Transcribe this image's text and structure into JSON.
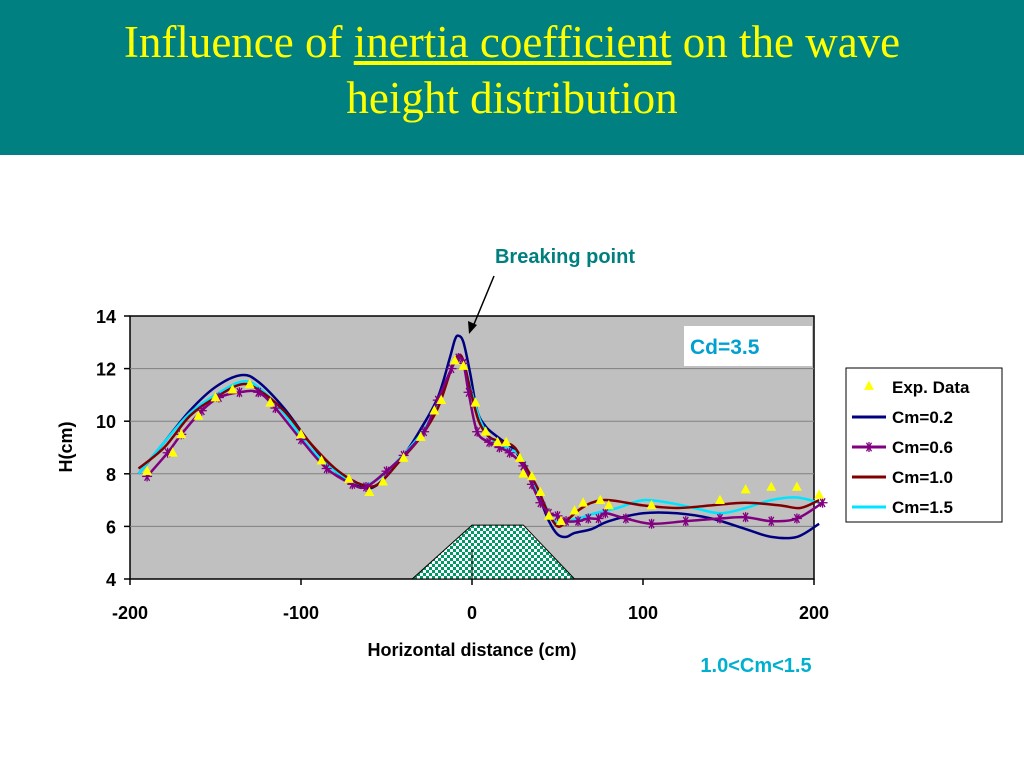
{
  "title": {
    "part1": "Influence of ",
    "underlined": "inertia coefficient",
    "part2": " on the wave",
    "line2": "height distribution"
  },
  "annotations": {
    "breaking_point": "Breaking point",
    "cd_label": "Cd=3.5",
    "cm_range": "1.0<Cm<1.5"
  },
  "colors": {
    "title_bg": "#008080",
    "title_text": "#ffff00",
    "plot_bg": "#c0c0c0",
    "annotation_teal": "#007f7f",
    "cm_range_cyan": "#00b0d0"
  },
  "chart_data": {
    "type": "line",
    "xlabel": "Horizontal distance (cm)",
    "ylabel": "H(cm)",
    "xlim": [
      -200,
      200
    ],
    "ylim": [
      4,
      14
    ],
    "xticks": [
      -200,
      -100,
      0,
      100,
      200
    ],
    "yticks": [
      4,
      6,
      8,
      10,
      12,
      14
    ],
    "grid": "horizontal",
    "legend": "right",
    "bathymetry_feature": {
      "description": "submerged breakwater (hatched trapezoid)",
      "points": [
        [
          -35,
          4
        ],
        [
          0,
          6.05
        ],
        [
          30,
          6.05
        ],
        [
          60,
          4
        ]
      ]
    },
    "series": [
      {
        "name": "Exp. Data",
        "style": "marker-triangle",
        "color": "#ffff00",
        "points": [
          [
            -190,
            8.1
          ],
          [
            -175,
            8.8
          ],
          [
            -170,
            9.5
          ],
          [
            -160,
            10.2
          ],
          [
            -150,
            10.9
          ],
          [
            -140,
            11.2
          ],
          [
            -130,
            11.4
          ],
          [
            -118,
            10.7
          ],
          [
            -100,
            9.5
          ],
          [
            -88,
            8.5
          ],
          [
            -72,
            7.8
          ],
          [
            -60,
            7.3
          ],
          [
            -52,
            7.7
          ],
          [
            -40,
            8.6
          ],
          [
            -30,
            9.4
          ],
          [
            -22,
            10.4
          ],
          [
            -18,
            10.8
          ],
          [
            -10,
            12.3
          ],
          [
            -5,
            12.1
          ],
          [
            2,
            10.7
          ],
          [
            8,
            9.6
          ],
          [
            15,
            9.2
          ],
          [
            20,
            9.2
          ],
          [
            28,
            8.6
          ],
          [
            30,
            8.0
          ],
          [
            35,
            7.9
          ],
          [
            40,
            7.3
          ],
          [
            45,
            6.4
          ],
          [
            52,
            6.2
          ],
          [
            60,
            6.6
          ],
          [
            65,
            6.9
          ],
          [
            75,
            7.0
          ],
          [
            80,
            6.8
          ],
          [
            105,
            6.8
          ],
          [
            145,
            7.0
          ],
          [
            160,
            7.4
          ],
          [
            175,
            7.5
          ],
          [
            190,
            7.5
          ],
          [
            203,
            7.2
          ]
        ]
      },
      {
        "name": "Cm=0.2",
        "style": "line",
        "color": "#000080",
        "points": [
          [
            -195,
            8.0
          ],
          [
            -180,
            9.2
          ],
          [
            -165,
            10.4
          ],
          [
            -150,
            11.3
          ],
          [
            -135,
            11.75
          ],
          [
            -125,
            11.5
          ],
          [
            -110,
            10.5
          ],
          [
            -95,
            9.2
          ],
          [
            -80,
            8.1
          ],
          [
            -65,
            7.5
          ],
          [
            -55,
            7.6
          ],
          [
            -40,
            8.7
          ],
          [
            -30,
            9.7
          ],
          [
            -20,
            10.9
          ],
          [
            -13,
            12.4
          ],
          [
            -10,
            13.1
          ],
          [
            -8,
            13.25
          ],
          [
            -5,
            13.0
          ],
          [
            -1,
            11.8
          ],
          [
            3,
            10.4
          ],
          [
            8,
            9.8
          ],
          [
            15,
            9.4
          ],
          [
            25,
            8.9
          ],
          [
            30,
            8.3
          ],
          [
            35,
            7.7
          ],
          [
            40,
            7.0
          ],
          [
            45,
            6.2
          ],
          [
            50,
            5.7
          ],
          [
            55,
            5.6
          ],
          [
            60,
            5.75
          ],
          [
            70,
            5.9
          ],
          [
            80,
            6.2
          ],
          [
            100,
            6.5
          ],
          [
            120,
            6.5
          ],
          [
            140,
            6.3
          ],
          [
            160,
            5.9
          ],
          [
            175,
            5.6
          ],
          [
            190,
            5.6
          ],
          [
            203,
            6.1
          ]
        ]
      },
      {
        "name": "Cm=0.6",
        "style": "line-star",
        "color": "#800080",
        "points": [
          [
            -190,
            7.9
          ],
          [
            -178,
            8.8
          ],
          [
            -170,
            9.5
          ],
          [
            -158,
            10.4
          ],
          [
            -148,
            10.9
          ],
          [
            -136,
            11.1
          ],
          [
            -125,
            11.1
          ],
          [
            -115,
            10.5
          ],
          [
            -100,
            9.3
          ],
          [
            -85,
            8.2
          ],
          [
            -70,
            7.6
          ],
          [
            -62,
            7.5
          ],
          [
            -50,
            8.1
          ],
          [
            -40,
            8.7
          ],
          [
            -28,
            9.6
          ],
          [
            -20,
            10.8
          ],
          [
            -12,
            12.0
          ],
          [
            -8,
            12.4
          ],
          [
            -5,
            12.2
          ],
          [
            -2,
            11.1
          ],
          [
            3,
            9.6
          ],
          [
            10,
            9.2
          ],
          [
            16,
            9.0
          ],
          [
            22,
            8.8
          ],
          [
            30,
            8.3
          ],
          [
            35,
            7.6
          ],
          [
            40,
            6.9
          ],
          [
            45,
            6.5
          ],
          [
            50,
            6.4
          ],
          [
            55,
            6.2
          ],
          [
            62,
            6.2
          ],
          [
            68,
            6.3
          ],
          [
            74,
            6.3
          ],
          [
            78,
            6.5
          ],
          [
            90,
            6.3
          ],
          [
            105,
            6.1
          ],
          [
            125,
            6.2
          ],
          [
            145,
            6.3
          ],
          [
            160,
            6.35
          ],
          [
            175,
            6.2
          ],
          [
            190,
            6.3
          ],
          [
            205,
            6.9
          ]
        ]
      },
      {
        "name": "Cm=1.0",
        "style": "line",
        "color": "#800000",
        "points": [
          [
            -195,
            8.2
          ],
          [
            -180,
            9.0
          ],
          [
            -165,
            10.2
          ],
          [
            -150,
            10.9
          ],
          [
            -135,
            11.4
          ],
          [
            -125,
            11.2
          ],
          [
            -110,
            10.4
          ],
          [
            -95,
            9.2
          ],
          [
            -80,
            8.2
          ],
          [
            -65,
            7.6
          ],
          [
            -55,
            7.6
          ],
          [
            -42,
            8.5
          ],
          [
            -30,
            9.4
          ],
          [
            -20,
            10.5
          ],
          [
            -12,
            12.0
          ],
          [
            -8,
            12.5
          ],
          [
            -5,
            12.3
          ],
          [
            -1,
            11.2
          ],
          [
            4,
            10.0
          ],
          [
            10,
            9.4
          ],
          [
            18,
            9.2
          ],
          [
            25,
            9.0
          ],
          [
            32,
            8.2
          ],
          [
            38,
            7.5
          ],
          [
            44,
            6.6
          ],
          [
            50,
            6.0
          ],
          [
            55,
            6.2
          ],
          [
            62,
            6.6
          ],
          [
            70,
            6.9
          ],
          [
            80,
            7.0
          ],
          [
            100,
            6.8
          ],
          [
            120,
            6.7
          ],
          [
            140,
            6.8
          ],
          [
            160,
            6.9
          ],
          [
            180,
            6.8
          ],
          [
            192,
            6.7
          ],
          [
            203,
            7.0
          ]
        ]
      },
      {
        "name": "Cm=1.5",
        "style": "line",
        "color": "#00e5ff",
        "points": [
          [
            -195,
            8.0
          ],
          [
            -180,
            9.2
          ],
          [
            -165,
            10.3
          ],
          [
            -150,
            11.0
          ],
          [
            -135,
            11.5
          ],
          [
            -125,
            11.3
          ],
          [
            -110,
            10.3
          ],
          [
            -95,
            9.0
          ],
          [
            -80,
            8.1
          ],
          [
            -65,
            7.6
          ],
          [
            -55,
            7.8
          ],
          [
            -42,
            8.6
          ],
          [
            -30,
            9.5
          ],
          [
            -20,
            10.6
          ],
          [
            -12,
            12.0
          ],
          [
            -8,
            12.4
          ],
          [
            -5,
            12.2
          ],
          [
            -1,
            11.3
          ],
          [
            5,
            10.0
          ],
          [
            12,
            9.3
          ],
          [
            20,
            9.0
          ],
          [
            28,
            8.7
          ],
          [
            35,
            7.8
          ],
          [
            42,
            6.9
          ],
          [
            48,
            6.2
          ],
          [
            55,
            6.2
          ],
          [
            62,
            6.3
          ],
          [
            72,
            6.5
          ],
          [
            85,
            6.7
          ],
          [
            100,
            7.0
          ],
          [
            115,
            6.9
          ],
          [
            130,
            6.7
          ],
          [
            145,
            6.5
          ],
          [
            160,
            6.7
          ],
          [
            175,
            7.0
          ],
          [
            190,
            7.1
          ],
          [
            203,
            6.9
          ]
        ]
      }
    ]
  }
}
